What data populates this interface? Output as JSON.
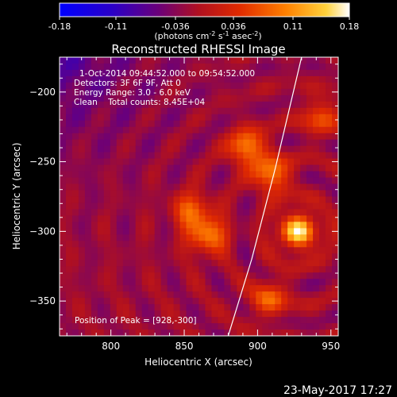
{
  "chart_data": {
    "type": "heatmap",
    "title": "Reconstructed RHESSI Image",
    "xlabel": "Heliocentric X (arcsec)",
    "ylabel": "Heliocentric Y (arcsec)",
    "xlim": [
      765,
      955
    ],
    "ylim": [
      -375,
      -175
    ],
    "x_ticks": [
      800,
      850,
      900,
      950
    ],
    "y_ticks": [
      -200,
      -250,
      -300,
      -350
    ],
    "colorbar": {
      "range": [
        -0.18,
        0.18
      ],
      "tick_values": [
        -0.18,
        -0.11,
        -0.036,
        0.036,
        0.11,
        0.18
      ],
      "tick_labels": [
        "-0.18",
        "-0.11",
        "-0.036",
        "0.036",
        "0.11",
        "0.18"
      ],
      "units_label": "(photons cm",
      "units_exp1": "-2",
      "units_mid1": " s",
      "units_exp2": "-1",
      "units_mid2": " asec",
      "units_exp3": "-2",
      "units_end": ")"
    },
    "annotations": {
      "time_range": "1-Oct-2014 09:44:52.000 to 09:54:52.000",
      "detectors": "Detectors: 3F 6F 9F, Att 0",
      "energy": "Energy Range: 3.0 - 6.0 keV",
      "clean": "Clean    Total counts: 8.45E+04",
      "peak": "Position of Peak = [928,-300]"
    },
    "sources": [
      {
        "x": 928,
        "y": -300,
        "value": 0.18
      },
      {
        "x": 893,
        "y": -240,
        "value": 0.13
      },
      {
        "x": 910,
        "y": -260,
        "value": 0.12
      },
      {
        "x": 866,
        "y": -303,
        "value": 0.12
      },
      {
        "x": 855,
        "y": -285,
        "value": 0.1
      },
      {
        "x": 908,
        "y": -348,
        "value": 0.09
      },
      {
        "x": 943,
        "y": -218,
        "value": 0.08
      }
    ],
    "limb": [
      [
        930,
        -175
      ],
      [
        912,
        -255
      ],
      [
        896,
        -320
      ],
      [
        880,
        -375
      ]
    ],
    "footer_date": "23-May-2017 17:27"
  }
}
